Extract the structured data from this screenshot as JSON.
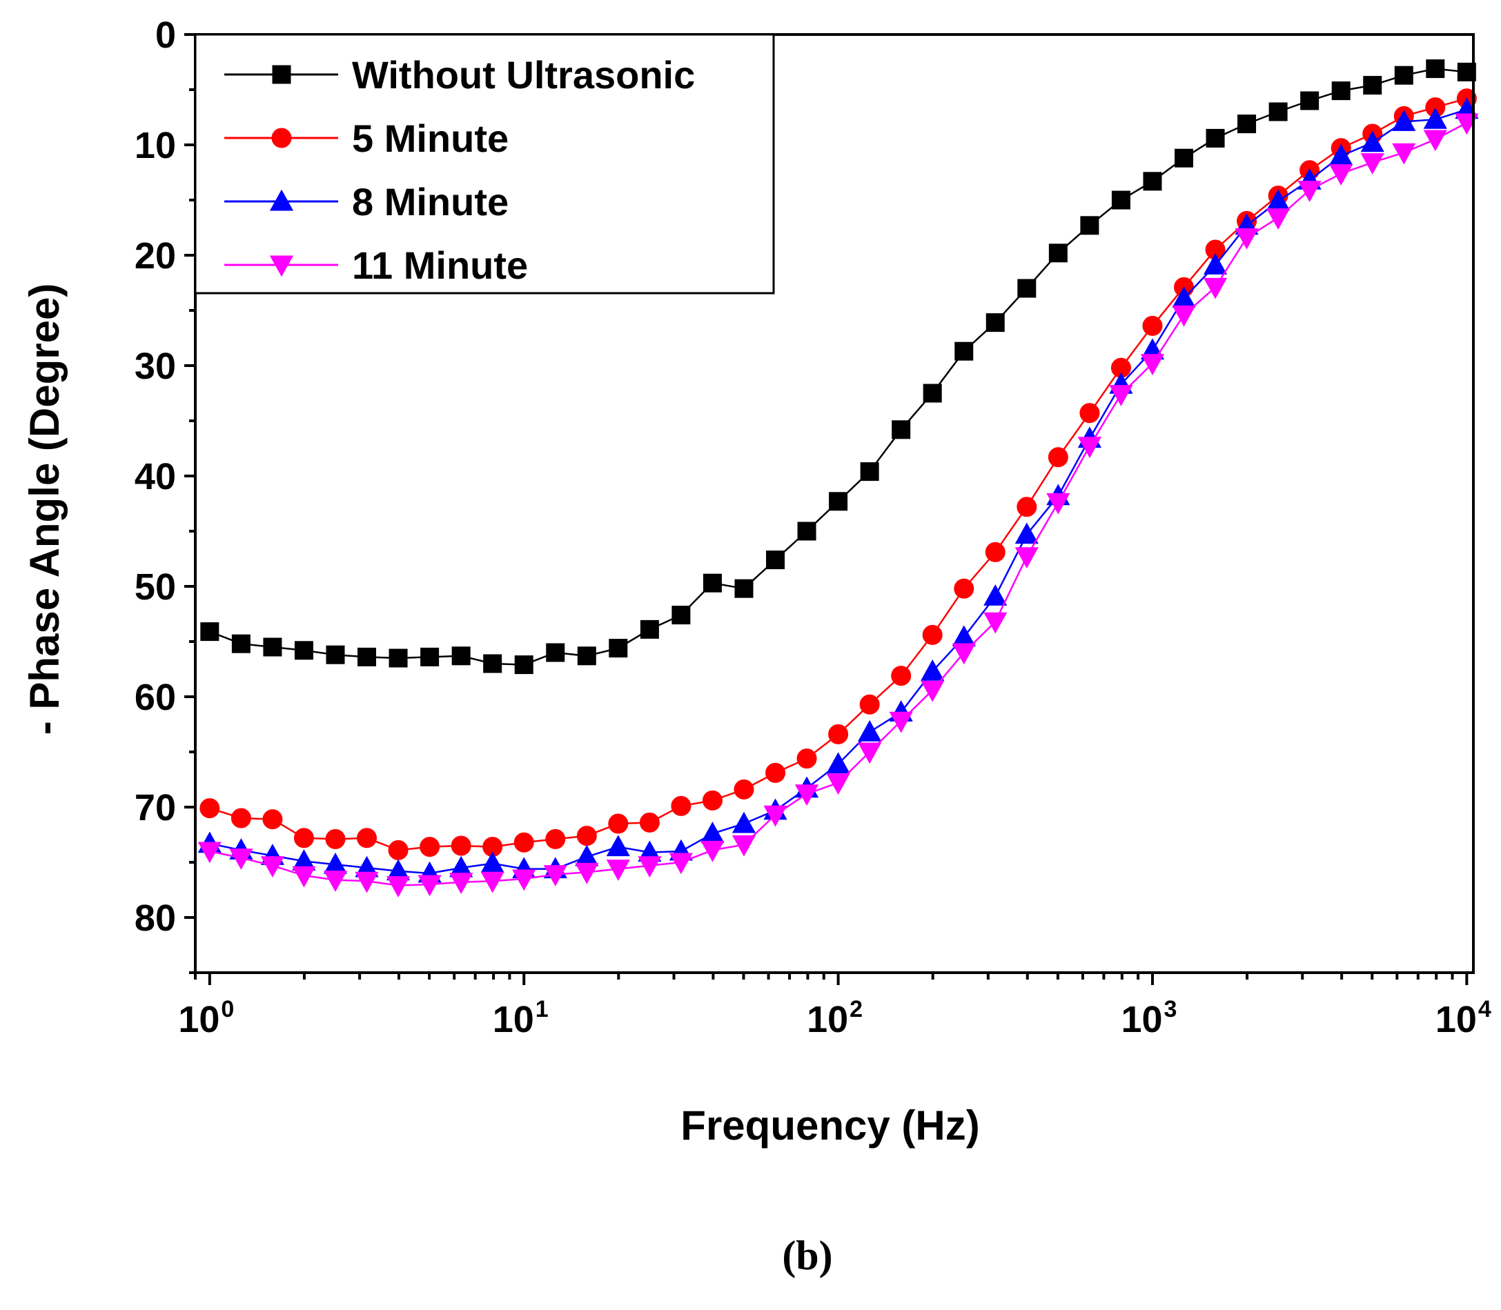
{
  "chart_data": {
    "type": "line",
    "title": "",
    "xlabel": "Frequency (Hz)",
    "ylabel": "- Phase Angle (Degree)",
    "xscale": "log",
    "xlim": [
      0.9,
      10500
    ],
    "ylim": [
      0,
      85
    ],
    "y_inverted": true,
    "panel_label": "(b)",
    "x_ticks": [
      {
        "base": "10",
        "exp": "0",
        "value": 1
      },
      {
        "base": "10",
        "exp": "1",
        "value": 10
      },
      {
        "base": "10",
        "exp": "2",
        "value": 100
      },
      {
        "base": "10",
        "exp": "3",
        "value": 1000
      },
      {
        "base": "10",
        "exp": "4",
        "value": 10000
      }
    ],
    "y_ticks": [
      "0",
      "10",
      "20",
      "30",
      "40",
      "50",
      "60",
      "70",
      "80"
    ],
    "legend_position": "top-left",
    "x": [
      1,
      1.259,
      1.585,
      1.995,
      2.512,
      3.162,
      3.981,
      5.012,
      6.31,
      7.943,
      10,
      12.59,
      15.85,
      19.95,
      25.12,
      31.62,
      39.81,
      50.12,
      63.1,
      79.43,
      100,
      125.9,
      158.5,
      199.5,
      251.2,
      316.2,
      398.1,
      501.2,
      631,
      794.3,
      1000,
      1259,
      1585,
      1995,
      2512,
      3162,
      3981,
      5012,
      6310,
      7943,
      10000
    ],
    "series": [
      {
        "name": "Without Ultrasonic",
        "color": "#000000",
        "marker": "square",
        "values": [
          54.1,
          55.2,
          55.5,
          55.8,
          56.2,
          56.4,
          56.5,
          56.4,
          56.3,
          57.0,
          57.1,
          56.0,
          56.3,
          55.6,
          53.9,
          52.6,
          49.7,
          50.2,
          47.6,
          45.0,
          42.3,
          39.6,
          35.8,
          32.5,
          28.7,
          26.1,
          23.0,
          19.8,
          17.3,
          15.0,
          13.3,
          11.2,
          9.4,
          8.1,
          7.0,
          6.0,
          5.1,
          4.6,
          3.7,
          3.1,
          3.4
        ]
      },
      {
        "name": "5 Minute",
        "color": "#ff0000",
        "marker": "circle",
        "values": [
          70.1,
          71.0,
          71.1,
          72.8,
          72.9,
          72.8,
          73.9,
          73.6,
          73.5,
          73.6,
          73.2,
          72.9,
          72.6,
          71.5,
          71.4,
          69.9,
          69.4,
          68.4,
          66.9,
          65.6,
          63.4,
          60.7,
          58.1,
          54.4,
          50.2,
          46.9,
          42.8,
          38.3,
          34.3,
          30.2,
          26.4,
          22.9,
          19.5,
          16.9,
          14.6,
          12.3,
          10.3,
          9.0,
          7.4,
          6.6,
          5.8
        ]
      },
      {
        "name": "8 Minute",
        "color": "#0000ff",
        "marker": "triangle-up",
        "values": [
          73.3,
          73.9,
          74.4,
          74.9,
          75.2,
          75.5,
          75.8,
          76.0,
          75.5,
          75.1,
          75.6,
          75.6,
          74.5,
          73.6,
          74.1,
          74.0,
          72.4,
          71.5,
          70.3,
          68.3,
          66.1,
          63.2,
          61.4,
          57.7,
          54.6,
          50.9,
          45.3,
          41.8,
          36.6,
          31.7,
          28.6,
          23.9,
          20.9,
          17.3,
          15.1,
          13.2,
          11.0,
          9.8,
          7.9,
          7.7,
          6.8
        ]
      },
      {
        "name": "11 Minute",
        "color": "#ff00ff",
        "marker": "triangle-down",
        "values": [
          74.0,
          74.6,
          75.3,
          76.2,
          76.6,
          76.7,
          77.1,
          77.0,
          76.8,
          76.7,
          76.5,
          76.1,
          75.9,
          75.6,
          75.3,
          75.0,
          73.9,
          73.4,
          70.7,
          68.8,
          67.8,
          65.0,
          62.2,
          59.4,
          56.0,
          53.2,
          47.3,
          42.4,
          37.3,
          32.6,
          29.8,
          25.4,
          22.9,
          18.4,
          16.6,
          14.1,
          12.6,
          11.6,
          10.7,
          9.5,
          8.0
        ]
      }
    ]
  }
}
